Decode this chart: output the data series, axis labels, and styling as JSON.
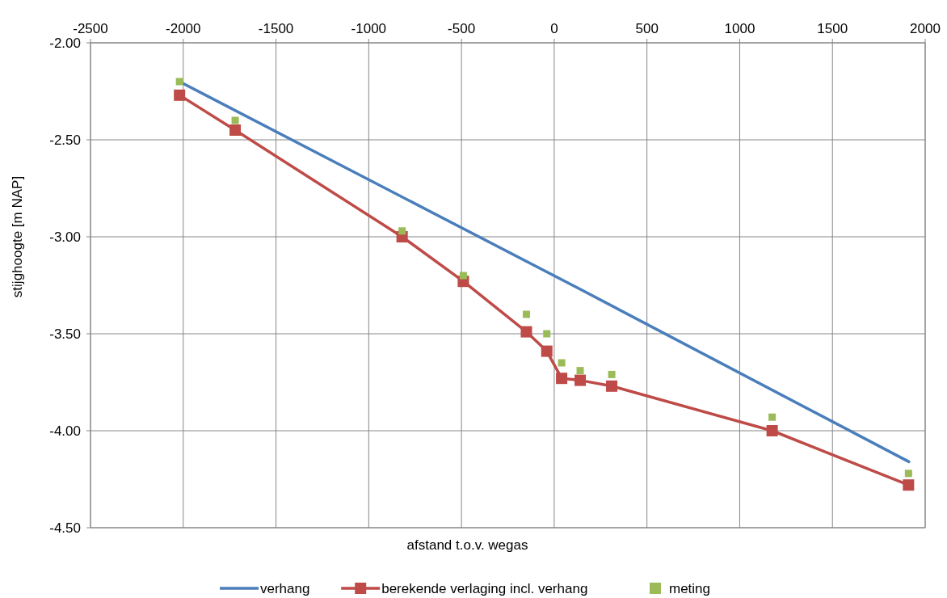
{
  "chart_data": {
    "type": "line",
    "xlabel": "afstand t.o.v. wegas",
    "ylabel": "stijghoogte [m NAP]",
    "xlim": [
      -2500,
      2000
    ],
    "xticks": [
      -2500,
      -2000,
      -1500,
      -1000,
      -500,
      0,
      500,
      1000,
      1500,
      2000
    ],
    "ylim": [
      -4.5,
      -2.0
    ],
    "yticks": [
      {
        "value": -4.5,
        "label": "-4.50"
      },
      {
        "value": -4.0,
        "label": "-4.00"
      },
      {
        "value": -3.5,
        "label": "-3.50"
      },
      {
        "value": -3.0,
        "label": "-3.00"
      },
      {
        "value": -2.5,
        "label": "-2.50"
      },
      {
        "value": -2.0,
        "label": "-2.00"
      }
    ],
    "grid": true,
    "legend": "bottom",
    "series": [
      {
        "name": "verhang",
        "type": "line",
        "marker": "none",
        "color": "#4a7ebb",
        "x": [
          -2020,
          139,
          1912
        ],
        "values": [
          -2.2,
          -3.27,
          -4.16
        ]
      },
      {
        "name": "berekende verlaging incl. verhang",
        "type": "line",
        "marker": "square",
        "color": "#be4b48",
        "x": [
          -2020,
          -1720,
          -820,
          -490,
          -150,
          -40,
          40,
          140,
          310,
          1175,
          1910
        ],
        "values": [
          -2.27,
          -2.45,
          -3.0,
          -3.23,
          -3.49,
          -3.59,
          -3.73,
          -3.74,
          -3.77,
          -4.0,
          -4.28
        ]
      },
      {
        "name": "meting",
        "type": "scatter",
        "marker": "square",
        "color": "#9bbb59",
        "x": [
          -2020,
          -1720,
          -820,
          -490,
          -150,
          -40,
          40,
          140,
          310,
          1175,
          1910
        ],
        "values": [
          -2.2,
          -2.4,
          -2.97,
          -3.2,
          -3.4,
          -3.5,
          -3.65,
          -3.69,
          -3.71,
          -3.93,
          -4.22
        ]
      }
    ]
  }
}
